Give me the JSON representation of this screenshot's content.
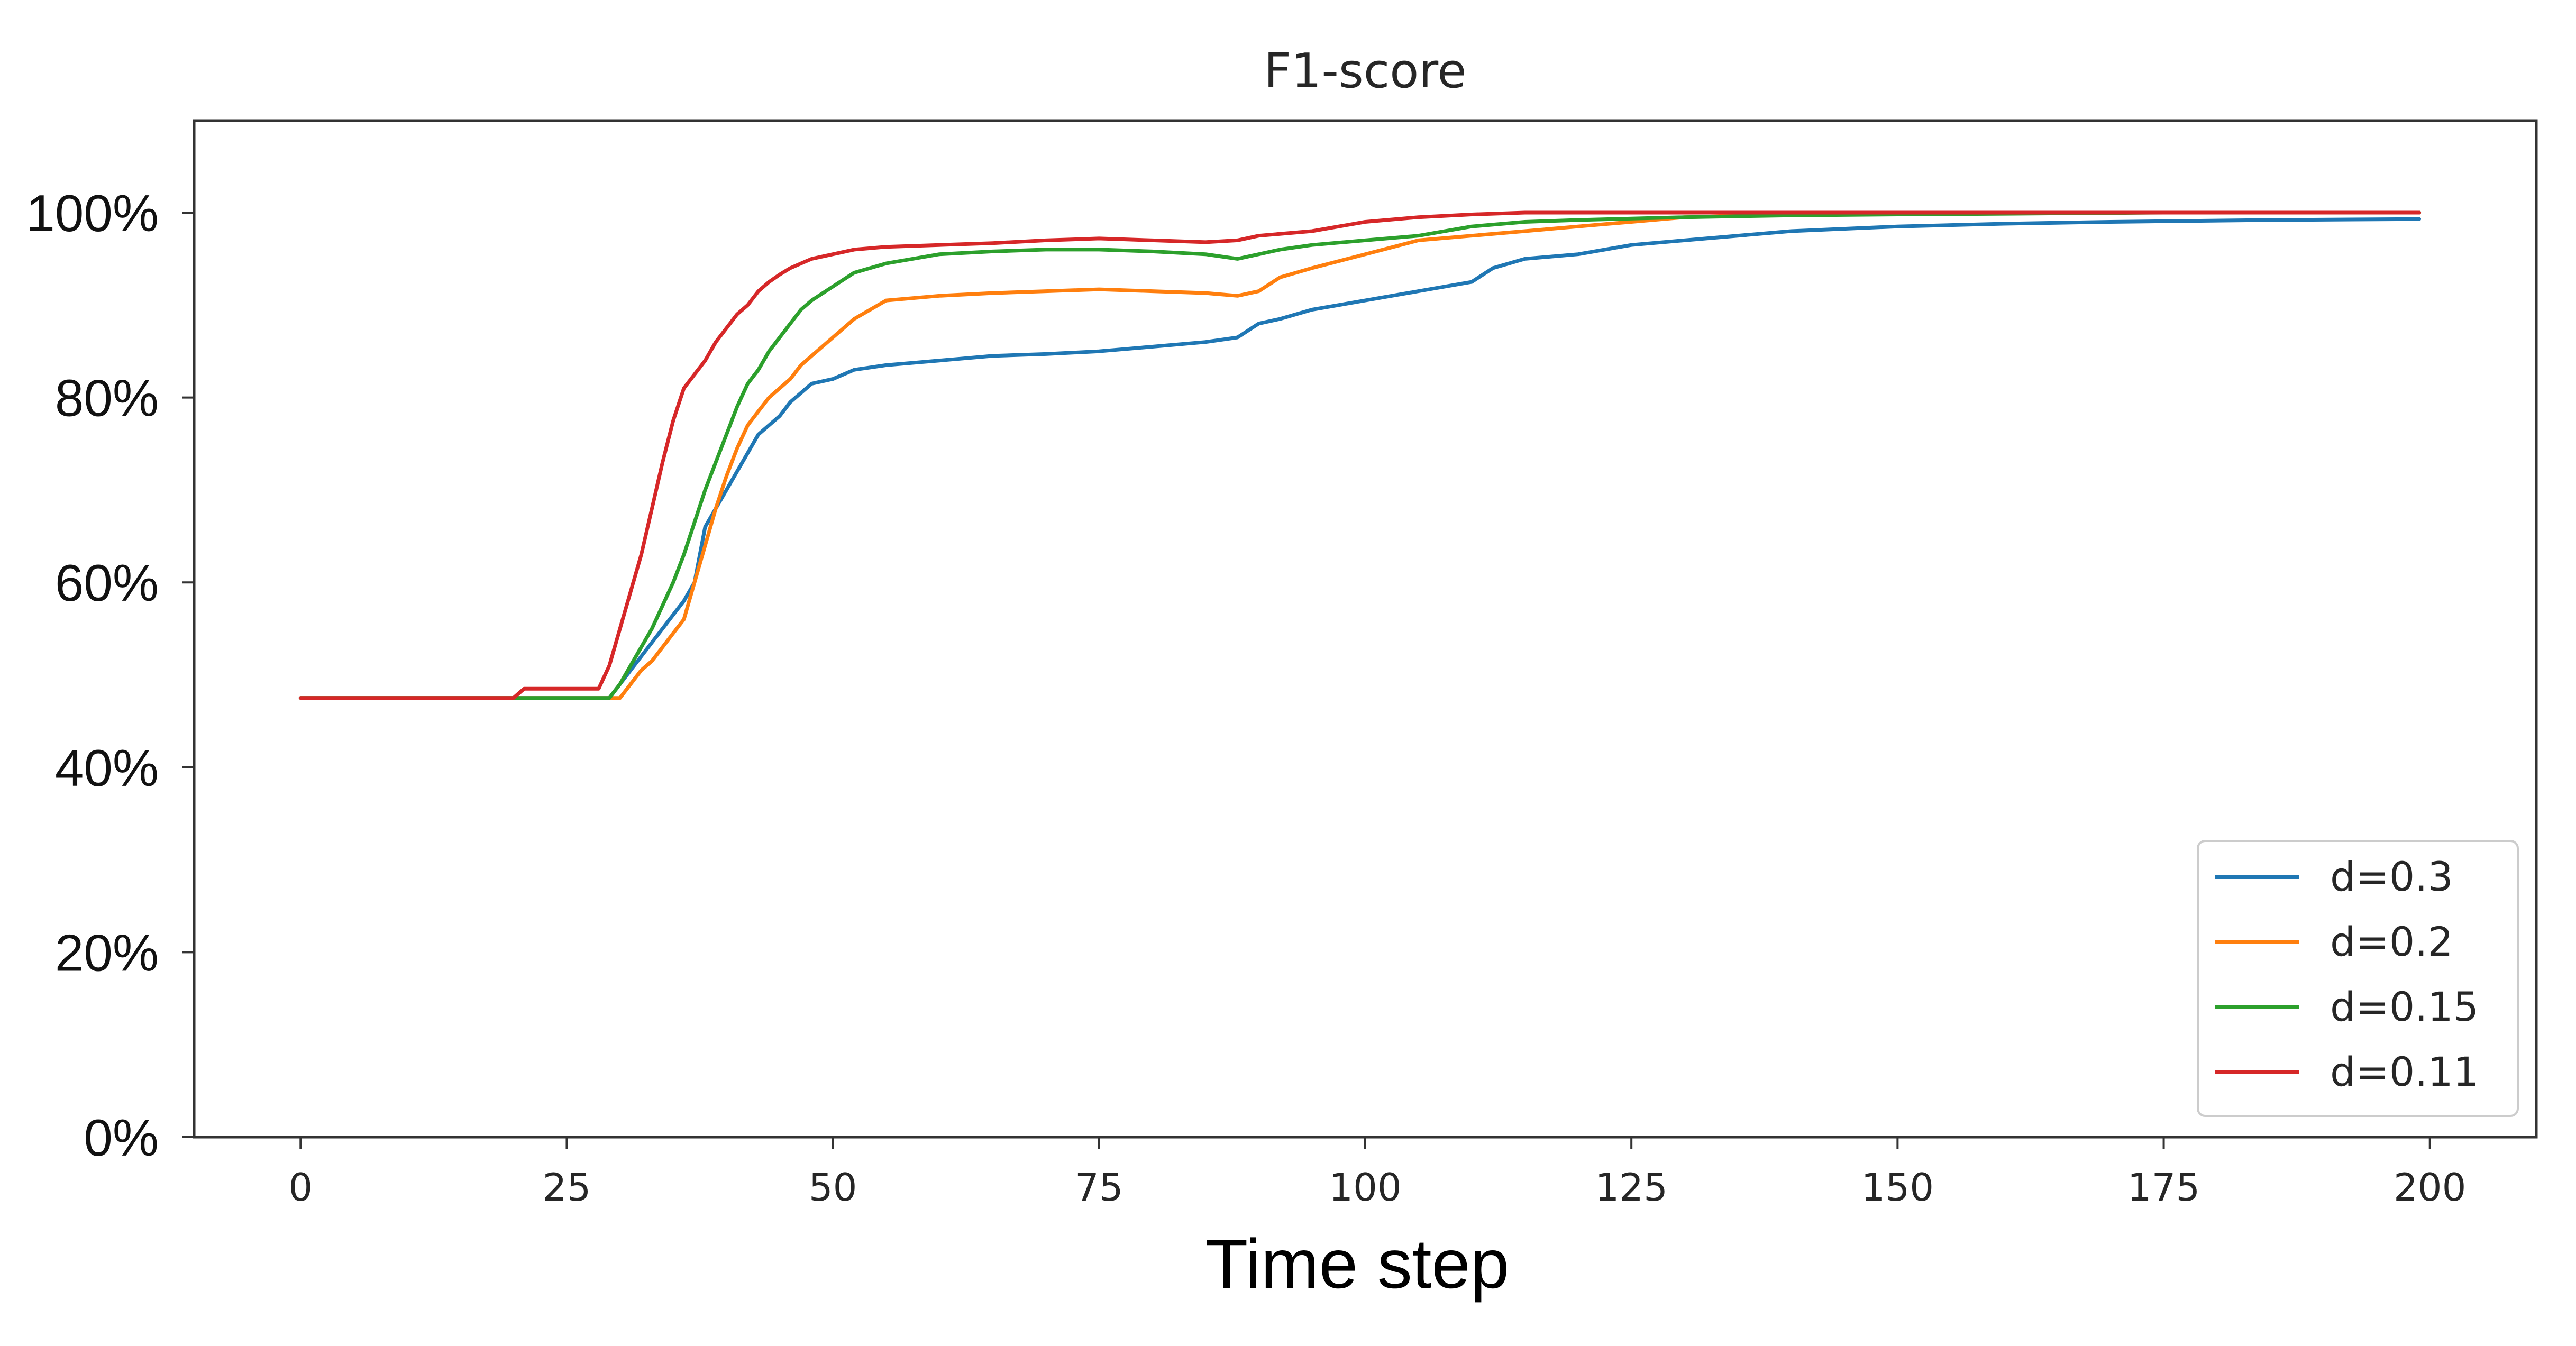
{
  "chart_data": {
    "type": "line",
    "title": "F1-score",
    "xlabel": "Time step",
    "ylabel": "",
    "xlim": [
      -10,
      210
    ],
    "ylim": [
      0,
      110
    ],
    "xticks": [
      0,
      25,
      50,
      75,
      100,
      125,
      150,
      175,
      200
    ],
    "xtick_labels": [
      "0",
      "25",
      "50",
      "75",
      "100",
      "125",
      "150",
      "175",
      "200"
    ],
    "yticks": [
      0,
      20,
      40,
      60,
      80,
      100
    ],
    "ytick_labels": [
      "0%",
      "20%",
      "40%",
      "60%",
      "80%",
      "100%"
    ],
    "grid": false,
    "legend_position": "lower-right",
    "series": [
      {
        "name": "d=0.3",
        "color": "#1f77b4",
        "x": [
          0,
          29,
          30,
          31,
          32,
          33,
          34,
          35,
          36,
          37,
          38,
          39,
          40,
          41,
          42,
          43,
          44,
          45,
          46,
          47,
          48,
          50,
          52,
          55,
          58,
          62,
          65,
          70,
          75,
          80,
          85,
          88,
          90,
          92,
          95,
          100,
          105,
          110,
          112,
          115,
          120,
          125,
          130,
          140,
          150,
          160,
          170,
          185,
          199
        ],
        "y": [
          47.5,
          47.5,
          49,
          50.5,
          52,
          53.5,
          55,
          56.5,
          58,
          60,
          66,
          68,
          70,
          72,
          74,
          76,
          77,
          78,
          79.5,
          80.5,
          81.5,
          82,
          83,
          83.5,
          83.8,
          84.2,
          84.5,
          84.7,
          85,
          85.5,
          86,
          86.5,
          88,
          88.5,
          89.5,
          90.5,
          91.5,
          92.5,
          94,
          95,
          95.5,
          96.5,
          97,
          98,
          98.5,
          98.8,
          99,
          99.2,
          99.3
        ]
      },
      {
        "name": "d=0.2",
        "color": "#ff7f0e",
        "x": [
          0,
          30,
          31,
          32,
          33,
          34,
          35,
          36,
          37,
          38,
          39,
          40,
          41,
          42,
          43,
          44,
          45,
          46,
          47,
          48,
          49,
          50,
          52,
          55,
          60,
          65,
          70,
          75,
          80,
          85,
          88,
          90,
          92,
          95,
          100,
          105,
          110,
          115,
          120,
          125,
          130,
          140,
          150,
          160,
          175,
          199
        ],
        "y": [
          47.5,
          47.5,
          49,
          50.5,
          51.5,
          53,
          54.5,
          56,
          60,
          64,
          68,
          71.5,
          74.5,
          77,
          78.5,
          80,
          81,
          82,
          83.5,
          84.5,
          85.5,
          86.5,
          88.5,
          90.5,
          91,
          91.3,
          91.5,
          91.7,
          91.5,
          91.3,
          91,
          91.5,
          93,
          94,
          95.5,
          97,
          97.5,
          98,
          98.5,
          99,
          99.5,
          99.8,
          100,
          100,
          100,
          100
        ]
      },
      {
        "name": "d=0.15",
        "color": "#2ca02c",
        "x": [
          0,
          29,
          30,
          31,
          32,
          33,
          34,
          35,
          36,
          37,
          38,
          39,
          40,
          41,
          42,
          43,
          44,
          45,
          46,
          47,
          48,
          50,
          52,
          55,
          60,
          65,
          70,
          75,
          80,
          85,
          88,
          90,
          92,
          95,
          100,
          105,
          110,
          115,
          120,
          130,
          140,
          150,
          175,
          199
        ],
        "y": [
          47.5,
          47.5,
          49,
          51,
          53,
          55,
          57.5,
          60,
          63,
          66.5,
          70,
          73,
          76,
          79,
          81.5,
          83,
          85,
          86.5,
          88,
          89.5,
          90.5,
          92,
          93.5,
          94.5,
          95.5,
          95.8,
          96,
          96,
          95.8,
          95.5,
          95,
          95.5,
          96,
          96.5,
          97,
          97.5,
          98.5,
          99,
          99.2,
          99.5,
          99.7,
          99.8,
          100,
          100
        ]
      },
      {
        "name": "d=0.11",
        "color": "#d62728",
        "x": [
          0,
          20,
          21,
          28,
          29,
          30,
          31,
          32,
          33,
          34,
          35,
          36,
          37,
          38,
          39,
          40,
          41,
          42,
          43,
          44,
          45,
          46,
          48,
          50,
          52,
          55,
          60,
          65,
          70,
          75,
          80,
          85,
          88,
          90,
          95,
          100,
          105,
          110,
          115,
          125,
          150,
          175,
          199
        ],
        "y": [
          47.5,
          47.5,
          48.5,
          48.5,
          51,
          55,
          59,
          63,
          68,
          73,
          77.5,
          81,
          82.5,
          84,
          86,
          87.5,
          89,
          90,
          91.5,
          92.5,
          93.3,
          94,
          95,
          95.5,
          96,
          96.3,
          96.5,
          96.7,
          97,
          97.2,
          97,
          96.8,
          97,
          97.5,
          98,
          99,
          99.5,
          99.8,
          100,
          100,
          100,
          100,
          100
        ]
      }
    ]
  }
}
